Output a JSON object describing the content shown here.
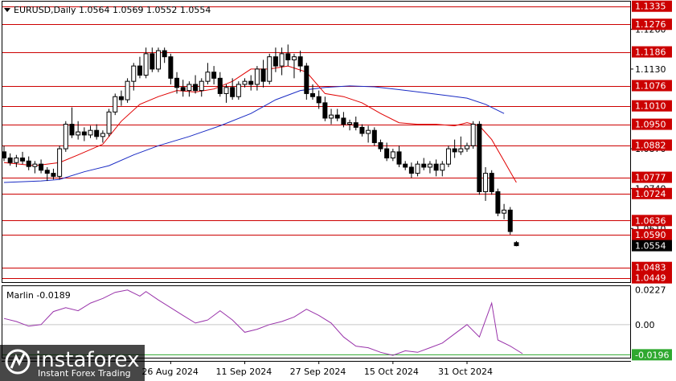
{
  "header": {
    "symbol_line": "EURUSD,Daily  1.0564 1.0569 1.0552 1.0554",
    "indicator_label": "Marlin -0.0189"
  },
  "colors": {
    "background": "#ffffff",
    "frame": "#000000",
    "level_line": "#cc0000",
    "level_label_bg": "#cc0000",
    "ma_fast": "#e00000",
    "ma_slow": "#1a2bc4",
    "oscillator": "#9933aa",
    "oscillator_zero": "#c8c8c8",
    "oscillator_signal": "#2ea82e",
    "candle_up": "#ffffff",
    "candle_down": "#000000",
    "current_price_bg": "#000000"
  },
  "branding": {
    "logo_name": "instaforex",
    "logo_tagline": "Instant Forex Trading",
    "logo_icon": "instaforex-logo-icon"
  },
  "chart_data": [
    {
      "type": "candlestick",
      "title": "EURUSD,Daily",
      "ohlc_header": {
        "open": 1.0564,
        "high": 1.0569,
        "low": 1.0552,
        "close": 1.0554
      },
      "x_tick_labels": [
        "26 Aug 2024",
        "11 Sep 2024",
        "27 Sep 2024",
        "15 Oct 2024",
        "31 Oct 2024"
      ],
      "x_tick_positions": [
        27,
        39,
        51,
        63,
        75
      ],
      "ylim": [
        1.0435,
        1.135
      ],
      "y_axis_labels": [
        1.126,
        1.113,
        1.087,
        1.074,
        1.061
      ],
      "horizontal_levels": [
        1.1335,
        1.1276,
        1.1186,
        1.1076,
        1.101,
        1.095,
        1.0882,
        1.0777,
        1.0724,
        1.0636,
        1.059,
        1.0483,
        1.0449
      ],
      "current_price": 1.0554,
      "candles": [
        [
          1.086,
          1.088,
          1.083,
          1.084
        ],
        [
          1.084,
          1.0855,
          1.0815,
          1.0825
        ],
        [
          1.0825,
          1.085,
          1.081,
          1.084
        ],
        [
          1.084,
          1.086,
          1.082,
          1.083
        ],
        [
          1.083,
          1.0845,
          1.08,
          1.0812
        ],
        [
          1.0812,
          1.083,
          1.079,
          1.082
        ],
        [
          1.082,
          1.0835,
          1.079,
          1.08
        ],
        [
          1.08,
          1.081,
          1.0765,
          1.079
        ],
        [
          1.079,
          1.0805,
          1.077,
          1.078
        ],
        [
          1.078,
          1.088,
          1.077,
          1.087
        ],
        [
          1.087,
          1.096,
          1.086,
          1.095
        ],
        [
          1.095,
          1.1005,
          1.0905,
          1.0915
        ],
        [
          1.0915,
          1.096,
          1.09,
          1.0925
        ],
        [
          1.0925,
          1.094,
          1.0895,
          1.0915
        ],
        [
          1.0915,
          1.0945,
          1.0905,
          1.093
        ],
        [
          1.093,
          1.095,
          1.09,
          1.091
        ],
        [
          1.091,
          1.093,
          1.089,
          1.092
        ],
        [
          1.092,
          1.1,
          1.091,
          1.099
        ],
        [
          1.099,
          1.105,
          1.098,
          1.104
        ],
        [
          1.104,
          1.106,
          1.101,
          1.103
        ],
        [
          1.103,
          1.11,
          1.102,
          1.109
        ],
        [
          1.109,
          1.115,
          1.106,
          1.114
        ],
        [
          1.114,
          1.117,
          1.11,
          1.111
        ],
        [
          1.111,
          1.12,
          1.11,
          1.118
        ],
        [
          1.118,
          1.12,
          1.112,
          1.113
        ],
        [
          1.113,
          1.12,
          1.112,
          1.119
        ],
        [
          1.119,
          1.12,
          1.115,
          1.117
        ],
        [
          1.117,
          1.118,
          1.108,
          1.11
        ],
        [
          1.11,
          1.112,
          1.105,
          1.107
        ],
        [
          1.107,
          1.1095,
          1.104,
          1.106
        ],
        [
          1.106,
          1.109,
          1.104,
          1.108
        ],
        [
          1.108,
          1.111,
          1.105,
          1.106
        ],
        [
          1.106,
          1.11,
          1.104,
          1.109
        ],
        [
          1.109,
          1.115,
          1.108,
          1.112
        ],
        [
          1.112,
          1.114,
          1.108,
          1.11
        ],
        [
          1.11,
          1.112,
          1.104,
          1.105
        ],
        [
          1.105,
          1.108,
          1.102,
          1.107
        ],
        [
          1.107,
          1.11,
          1.103,
          1.104
        ],
        [
          1.104,
          1.109,
          1.103,
          1.108
        ],
        [
          1.108,
          1.11,
          1.107,
          1.109
        ],
        [
          1.109,
          1.111,
          1.106,
          1.108
        ],
        [
          1.108,
          1.114,
          1.106,
          1.113
        ],
        [
          1.113,
          1.116,
          1.107,
          1.109
        ],
        [
          1.109,
          1.118,
          1.108,
          1.117
        ],
        [
          1.117,
          1.12,
          1.112,
          1.114
        ],
        [
          1.114,
          1.12,
          1.111,
          1.118
        ],
        [
          1.118,
          1.121,
          1.114,
          1.116
        ],
        [
          1.116,
          1.118,
          1.11,
          1.117
        ],
        [
          1.117,
          1.119,
          1.112,
          1.114
        ],
        [
          1.114,
          1.115,
          1.103,
          1.105
        ],
        [
          1.105,
          1.108,
          1.103,
          1.104
        ],
        [
          1.104,
          1.106,
          1.1,
          1.102
        ],
        [
          1.102,
          1.104,
          1.096,
          1.097
        ],
        [
          1.097,
          1.1,
          1.095,
          1.098
        ],
        [
          1.098,
          1.1,
          1.096,
          1.097
        ],
        [
          1.097,
          1.099,
          1.094,
          1.095
        ],
        [
          1.095,
          1.0965,
          1.093,
          1.0955
        ],
        [
          1.0955,
          1.0975,
          1.093,
          1.094
        ],
        [
          1.094,
          1.095,
          1.091,
          1.092
        ],
        [
          1.092,
          1.0945,
          1.089,
          1.093
        ],
        [
          1.093,
          1.094,
          1.088,
          1.089
        ],
        [
          1.089,
          1.09,
          1.086,
          1.087
        ],
        [
          1.087,
          1.089,
          1.083,
          1.084
        ],
        [
          1.084,
          1.087,
          1.083,
          1.086
        ],
        [
          1.086,
          1.088,
          1.081,
          1.082
        ],
        [
          1.082,
          1.083,
          1.08,
          1.081
        ],
        [
          1.081,
          1.0825,
          1.0775,
          1.079
        ],
        [
          1.079,
          1.083,
          1.078,
          1.082
        ],
        [
          1.082,
          1.084,
          1.08,
          1.081
        ],
        [
          1.081,
          1.083,
          1.079,
          1.082
        ],
        [
          1.082,
          1.0835,
          1.078,
          1.08
        ],
        [
          1.08,
          1.083,
          1.078,
          1.082
        ],
        [
          1.082,
          1.088,
          1.081,
          1.087
        ],
        [
          1.087,
          1.09,
          1.084,
          1.086
        ],
        [
          1.086,
          1.091,
          1.085,
          1.087
        ],
        [
          1.087,
          1.089,
          1.086,
          1.088
        ],
        [
          1.088,
          1.096,
          1.087,
          1.095
        ],
        [
          1.095,
          1.096,
          1.072,
          1.073
        ],
        [
          1.073,
          1.081,
          1.07,
          1.079
        ],
        [
          1.079,
          1.08,
          1.072,
          1.073
        ],
        [
          1.073,
          1.074,
          1.065,
          1.066
        ],
        [
          1.066,
          1.069,
          1.064,
          1.067
        ],
        [
          1.067,
          1.068,
          1.059,
          1.06
        ],
        [
          1.0564,
          1.0569,
          1.0552,
          1.0554
        ]
      ],
      "ma_fast": [
        [
          0,
          1.0825
        ],
        [
          5,
          1.0815
        ],
        [
          9,
          1.0825
        ],
        [
          12,
          1.085
        ],
        [
          16,
          1.0885
        ],
        [
          19,
          1.096
        ],
        [
          22,
          1.1015
        ],
        [
          25,
          1.104
        ],
        [
          28,
          1.106
        ],
        [
          31,
          1.1055
        ],
        [
          34,
          1.1065
        ],
        [
          37,
          1.109
        ],
        [
          40,
          1.113
        ],
        [
          43,
          1.113
        ],
        [
          46,
          1.114
        ],
        [
          49,
          1.112
        ],
        [
          52,
          1.105
        ],
        [
          55,
          1.104
        ],
        [
          58,
          1.102
        ],
        [
          61,
          1.0985
        ],
        [
          64,
          1.0955
        ],
        [
          67,
          1.095
        ],
        [
          70,
          1.095
        ],
        [
          73,
          1.0945
        ],
        [
          75,
          1.0955
        ],
        [
          77,
          1.0945
        ],
        [
          79,
          1.09
        ],
        [
          81,
          1.083
        ],
        [
          83,
          1.076
        ]
      ],
      "ma_slow": [
        [
          0,
          1.076
        ],
        [
          6,
          1.0765
        ],
        [
          9,
          1.077
        ],
        [
          13,
          1.0795
        ],
        [
          17,
          1.0815
        ],
        [
          21,
          1.085
        ],
        [
          25,
          1.088
        ],
        [
          30,
          1.091
        ],
        [
          35,
          1.0945
        ],
        [
          40,
          1.0985
        ],
        [
          44,
          1.103
        ],
        [
          48,
          1.106
        ],
        [
          52,
          1.107
        ],
        [
          56,
          1.1075
        ],
        [
          60,
          1.1072
        ],
        [
          64,
          1.1063
        ],
        [
          68,
          1.1053
        ],
        [
          72,
          1.1043
        ],
        [
          75,
          1.1035
        ],
        [
          78,
          1.1015
        ],
        [
          81,
          1.0985
        ]
      ]
    },
    {
      "type": "line",
      "title": "Marlin",
      "current_value": -0.0189,
      "ylim": [
        -0.0215,
        0.025
      ],
      "y_axis_labels": [
        0.0227,
        0.0,
        -0.0196
      ],
      "signal_level": -0.0196,
      "series": [
        {
          "values": [
            [
              0,
              0.004
            ],
            [
              2,
              0.002
            ],
            [
              4,
              -0.001
            ],
            [
              6,
              0.0
            ],
            [
              8,
              0.0085
            ],
            [
              10,
              0.011
            ],
            [
              12,
              0.009
            ],
            [
              14,
              0.014
            ],
            [
              16,
              0.017
            ],
            [
              18,
              0.021
            ],
            [
              20,
              0.0225
            ],
            [
              22,
              0.0185
            ],
            [
              23,
              0.0215
            ],
            [
              25,
              0.016
            ],
            [
              27,
              0.011
            ],
            [
              29,
              0.006
            ],
            [
              31,
              0.001
            ],
            [
              33,
              0.003
            ],
            [
              35,
              0.009
            ],
            [
              37,
              0.003
            ],
            [
              39,
              -0.005
            ],
            [
              41,
              -0.003
            ],
            [
              43,
              0.0
            ],
            [
              45,
              0.002
            ],
            [
              47,
              0.005
            ],
            [
              49,
              0.01
            ],
            [
              51,
              0.006
            ],
            [
              53,
              0.001
            ],
            [
              55,
              -0.008
            ],
            [
              57,
              -0.014
            ],
            [
              59,
              -0.015
            ],
            [
              61,
              -0.018
            ],
            [
              63,
              -0.02
            ],
            [
              65,
              -0.017
            ],
            [
              67,
              -0.018
            ],
            [
              69,
              -0.015
            ],
            [
              71,
              -0.012
            ],
            [
              73,
              -0.006
            ],
            [
              75,
              0.0
            ],
            [
              77,
              -0.008
            ],
            [
              79,
              0.014
            ],
            [
              80,
              -0.01
            ],
            [
              82,
              -0.014
            ],
            [
              84,
              -0.0189
            ]
          ]
        }
      ]
    }
  ]
}
